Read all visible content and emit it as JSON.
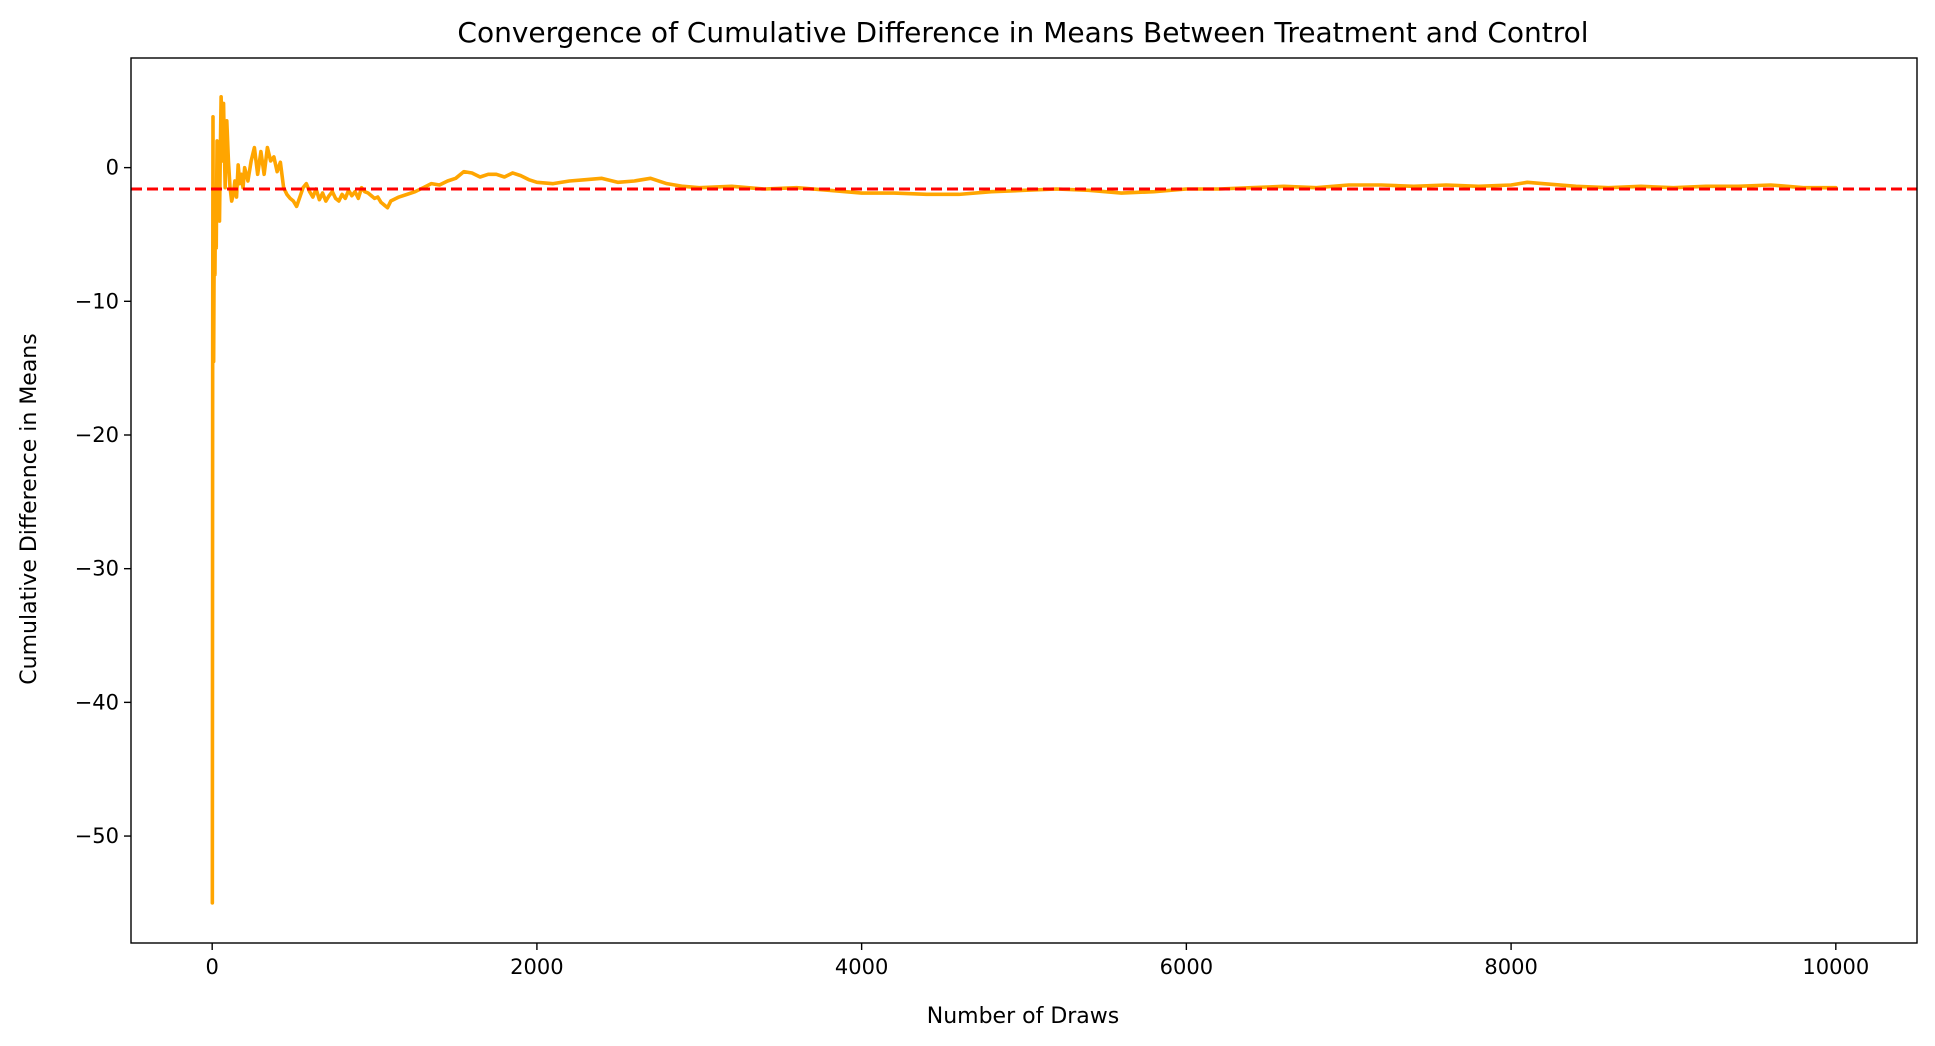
{
  "chart_data": {
    "type": "line",
    "title": "Convergence of Cumulative Difference in Means Between Treatment and Control",
    "xlabel": "Number of Draws",
    "ylabel": "Cumulative Difference in Means",
    "xlim": [
      -500,
      10500
    ],
    "ylim": [
      -58,
      8.2
    ],
    "xticks": [
      0,
      2000,
      4000,
      6000,
      8000,
      10000
    ],
    "xtick_labels": [
      "0",
      "2000",
      "4000",
      "6000",
      "8000",
      "10000"
    ],
    "yticks": [
      0,
      -10,
      -20,
      -30,
      -40,
      -50
    ],
    "ytick_labels": [
      "0",
      "−10",
      "−20",
      "−30",
      "−40",
      "−50"
    ],
    "grid": false,
    "legend": "none",
    "series": [
      {
        "color": "#FFA500",
        "style": "solid",
        "x": [
          1,
          3,
          5,
          7,
          9,
          11,
          14,
          17,
          20,
          25,
          30,
          35,
          40,
          45,
          50,
          55,
          60,
          65,
          70,
          75,
          80,
          90,
          100,
          110,
          120,
          130,
          140,
          150,
          160,
          170,
          180,
          190,
          200,
          220,
          240,
          260,
          280,
          300,
          320,
          340,
          360,
          380,
          400,
          420,
          440,
          460,
          480,
          500,
          520,
          540,
          560,
          580,
          600,
          620,
          640,
          660,
          680,
          700,
          720,
          740,
          760,
          780,
          800,
          820,
          840,
          860,
          880,
          900,
          920,
          940,
          960,
          980,
          1000,
          1020,
          1040,
          1060,
          1080,
          1100,
          1150,
          1200,
          1250,
          1300,
          1350,
          1400,
          1450,
          1500,
          1550,
          1600,
          1650,
          1700,
          1750,
          1800,
          1850,
          1900,
          1950,
          2000,
          2100,
          2200,
          2300,
          2400,
          2500,
          2600,
          2700,
          2800,
          2900,
          3000,
          3200,
          3400,
          3600,
          3800,
          4000,
          4200,
          4400,
          4600,
          4800,
          5000,
          5200,
          5400,
          5600,
          5800,
          6000,
          6200,
          6400,
          6600,
          6800,
          7000,
          7200,
          7400,
          7600,
          7800,
          8000,
          8100,
          8200,
          8400,
          8600,
          8800,
          9000,
          9200,
          9400,
          9600,
          9800,
          10000
        ],
        "y": [
          -55,
          -14,
          3.8,
          -12,
          -14.5,
          -9,
          -4,
          -8,
          -3,
          -6,
          2,
          -1,
          -2.5,
          -4,
          1,
          5.3,
          3,
          0.5,
          4.8,
          1.5,
          -1.5,
          3.5,
          0.5,
          -1.5,
          -2.5,
          -2,
          -1,
          -2.2,
          0.2,
          -1.2,
          -0.5,
          -1.5,
          0,
          -1,
          0.5,
          1.5,
          -0.5,
          1.2,
          -0.5,
          1.5,
          0.5,
          0.8,
          -0.3,
          0.4,
          -1.5,
          -2,
          -2.3,
          -2.5,
          -2.9,
          -2.2,
          -1.5,
          -1.2,
          -1.8,
          -2.2,
          -1.6,
          -2.4,
          -1.9,
          -2.5,
          -2.1,
          -1.8,
          -2.3,
          -2.5,
          -2,
          -2.3,
          -1.7,
          -2.1,
          -1.8,
          -2.3,
          -1.5,
          -1.8,
          -1.9,
          -2.1,
          -2.3,
          -2.2,
          -2.6,
          -2.8,
          -3,
          -2.5,
          -2.2,
          -2,
          -1.8,
          -1.5,
          -1.2,
          -1.3,
          -1,
          -0.8,
          -0.3,
          -0.4,
          -0.7,
          -0.5,
          -0.5,
          -0.7,
          -0.4,
          -0.6,
          -0.9,
          -1.1,
          -1.2,
          -1.0,
          -0.9,
          -0.8,
          -1.1,
          -1.0,
          -0.8,
          -1.2,
          -1.4,
          -1.5,
          -1.4,
          -1.6,
          -1.5,
          -1.7,
          -1.9,
          -1.9,
          -2.0,
          -2.0,
          -1.8,
          -1.7,
          -1.6,
          -1.7,
          -1.9,
          -1.8,
          -1.6,
          -1.6,
          -1.5,
          -1.4,
          -1.5,
          -1.3,
          -1.3,
          -1.4,
          -1.3,
          -1.4,
          -1.3,
          -1.1,
          -1.2,
          -1.4,
          -1.5,
          -1.4,
          -1.5,
          -1.4,
          -1.4,
          -1.3,
          -1.5,
          -1.5
        ]
      },
      {
        "color": "#FF0000",
        "style": "dashed",
        "y_constant": -1.6
      }
    ]
  }
}
